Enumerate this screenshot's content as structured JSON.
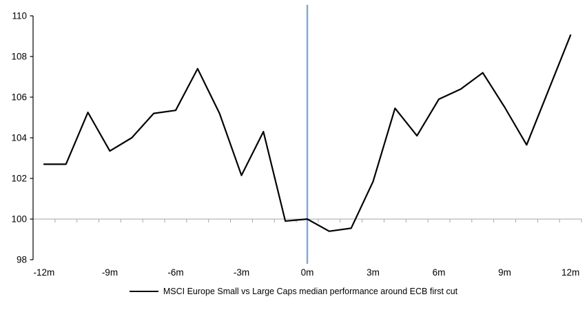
{
  "chart_data": {
    "type": "line",
    "title": "",
    "x": [
      -12,
      -11,
      -10,
      -9,
      -8,
      -7,
      -6,
      -5,
      -4,
      -3,
      -2,
      -1,
      0,
      1,
      2,
      3,
      4,
      5,
      6,
      7,
      8,
      9,
      10,
      11,
      12
    ],
    "series": [
      {
        "name": "MSCI Europe Small vs Large Caps median performance around ECB first cut",
        "values": [
          102.7,
          102.7,
          105.25,
          103.35,
          104.0,
          105.2,
          105.35,
          107.4,
          105.2,
          102.15,
          104.3,
          99.9,
          100.0,
          99.4,
          99.55,
          101.85,
          105.45,
          104.1,
          105.9,
          106.4,
          107.2,
          105.5,
          103.65,
          106.35,
          109.05
        ]
      }
    ],
    "x_tick_values": [
      -12,
      -9,
      -6,
      -3,
      0,
      3,
      6,
      9,
      12
    ],
    "x_tick_labels": [
      "-12m",
      "-9m",
      "-6m",
      "-3m",
      "0m",
      "3m",
      "6m",
      "9m",
      "12m"
    ],
    "y_ticks": [
      98,
      100,
      102,
      104,
      106,
      108,
      110
    ],
    "y_tick_labels": [
      "98",
      "100",
      "102",
      "104",
      "106",
      "108",
      "110"
    ],
    "ylim": [
      98,
      110
    ],
    "xlabel": "",
    "ylabel": "",
    "grid": "off",
    "baseline_value": 100,
    "event_line_x": 0,
    "legend_position": "bottom",
    "colors": {
      "series_line": "#000000",
      "event_line": "#7EA6D9",
      "baseline": "#A6A6A6",
      "axis": "#000000",
      "text": "#000000",
      "background": "#FFFFFF"
    }
  },
  "legend": {
    "label": "MSCI Europe Small vs Large Caps median performance around ECB first cut"
  }
}
